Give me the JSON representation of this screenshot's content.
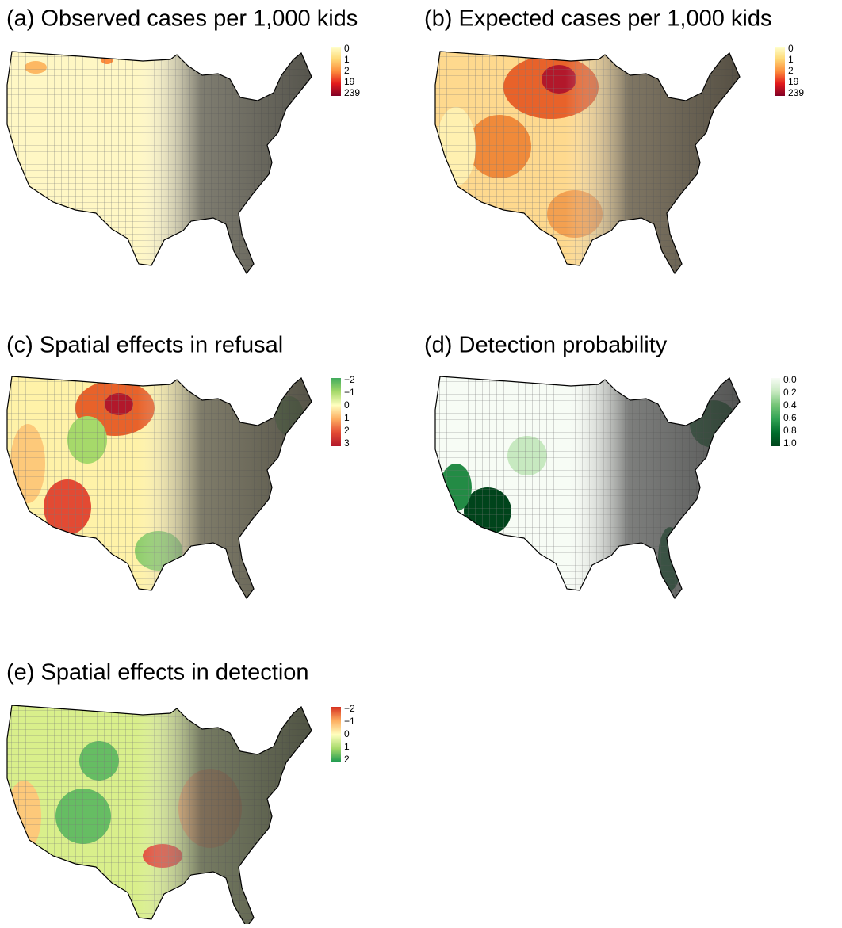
{
  "panels": [
    {
      "title": "(a) Observed cases per 1,000 kids",
      "legend": {
        "labels": [
          "0",
          "1",
          "2",
          "19",
          "239"
        ],
        "colors": [
          "#ffffcc",
          "#fed976",
          "#fd8d3c",
          "#e31a1c",
          "#800026"
        ]
      }
    },
    {
      "title": "(b) Expected cases per 1,000 kids",
      "legend": {
        "labels": [
          "0",
          "1",
          "2",
          "19",
          "239"
        ],
        "colors": [
          "#ffffcc",
          "#fed976",
          "#fd8d3c",
          "#e31a1c",
          "#800026"
        ]
      }
    },
    {
      "title": "(c) Spatial effects in refusal",
      "legend": {
        "labels": [
          "−2",
          "−1",
          "0",
          "1",
          "2",
          "3"
        ],
        "colors": [
          "#41ab5d",
          "#a6d96a",
          "#ffffbf",
          "#fdae61",
          "#e34a33",
          "#b2182b"
        ]
      }
    },
    {
      "title": "(d) Detection probability",
      "legend": {
        "labels": [
          "0.0",
          "0.2",
          "0.4",
          "0.6",
          "0.8",
          "1.0"
        ],
        "colors": [
          "#f7fcf5",
          "#c7e9c0",
          "#74c476",
          "#31a354",
          "#006d2c",
          "#00441b"
        ]
      }
    },
    {
      "title": "(e) Spatial effects in detection",
      "legend": {
        "labels": [
          "−2",
          "−1",
          "0",
          "1",
          "2"
        ],
        "colors": [
          "#d7301f",
          "#fdae61",
          "#ffffbf",
          "#a6d96a",
          "#1a9850"
        ]
      }
    }
  ]
}
